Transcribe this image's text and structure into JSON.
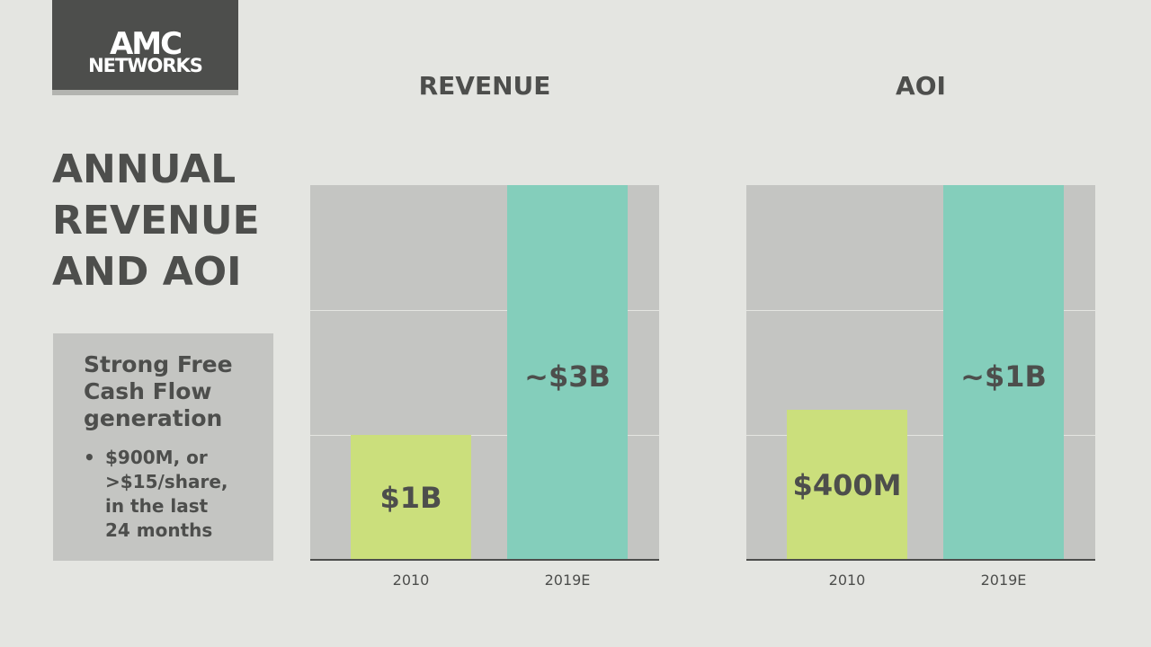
{
  "logo": {
    "line1": "AMC",
    "line2": "NETWORKS"
  },
  "title": {
    "lines": [
      "ANNUAL",
      "REVENUE",
      "AND AOI"
    ]
  },
  "callout": {
    "heading": "Strong Free Cash Flow generation",
    "heading_lines": [
      "Strong Free",
      "Cash Flow",
      "generation"
    ],
    "bullet_marker": "•",
    "bullet_lines": [
      "$900M, or",
      ">$15/share,",
      "in the last",
      "24 months"
    ]
  },
  "colors": {
    "background": "#e4e5e1",
    "plot_area": "#c4c5c2",
    "text": "#4d4e4c",
    "bar_2010": "#cbdf7c",
    "bar_2019E": "#84cebb"
  },
  "chart_data": [
    {
      "type": "bar",
      "title": "REVENUE",
      "categories": [
        "2010",
        "2019E"
      ],
      "values": [
        1,
        3
      ],
      "unit": "$B",
      "data_labels": [
        "$1B",
        "~$3B"
      ],
      "ylim": [
        0,
        3
      ],
      "grid": true,
      "legend": "none"
    },
    {
      "type": "bar",
      "title": "AOI",
      "categories": [
        "2010",
        "2019E"
      ],
      "values": [
        0.4,
        1
      ],
      "unit": "$B",
      "data_labels": [
        "$400M",
        "~$1B"
      ],
      "ylim": [
        0,
        1
      ],
      "grid": true,
      "legend": "none"
    }
  ]
}
